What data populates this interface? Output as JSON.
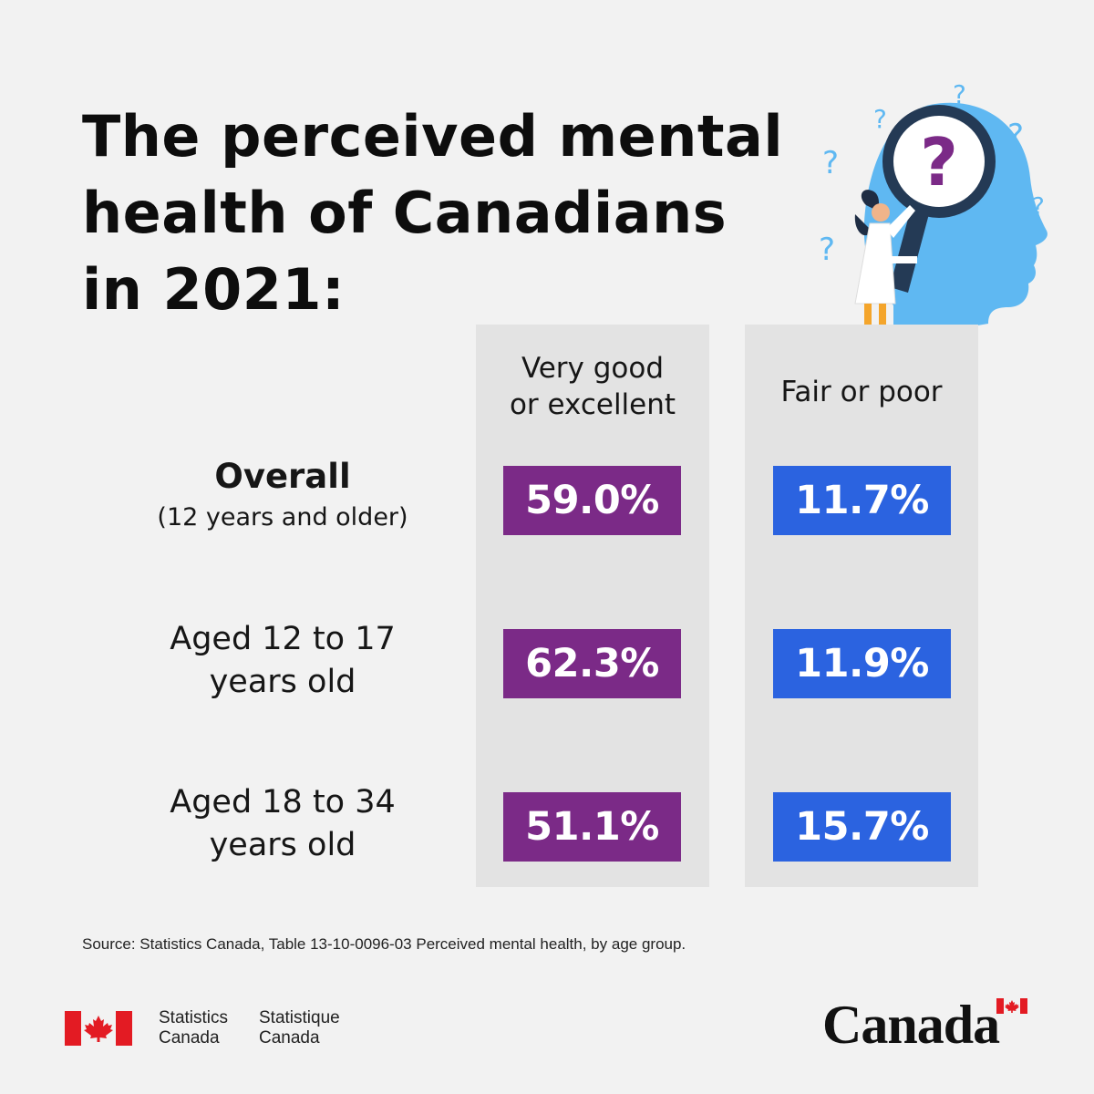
{
  "title_lines": [
    "The perceived mental",
    "health of Canadians",
    "in 2021:"
  ],
  "columns": [
    {
      "lines": [
        "Very good",
        "or excellent"
      ],
      "color": "#7b2a87"
    },
    {
      "lines": [
        "Fair or poor"
      ],
      "color": "#2b63e0"
    }
  ],
  "rows": [
    {
      "label_lines": [
        "Overall"
      ],
      "sub_label": "(12 years and older)",
      "values": [
        "59.0%",
        "11.7%"
      ]
    },
    {
      "label_lines": [
        "Aged 12 to 17",
        "years old"
      ],
      "values": [
        "62.3%",
        "11.9%"
      ]
    },
    {
      "label_lines": [
        "Aged 18 to 34",
        "years old"
      ],
      "values": [
        "51.1%",
        "15.7%"
      ]
    }
  ],
  "source": "Source: Statistics Canada, Table 13-10-0096-03 Perceived mental health, by age group.",
  "footer": {
    "agency_en": [
      "Statistics",
      "Canada"
    ],
    "agency_fr": [
      "Statistique",
      "Canada"
    ],
    "wordmark": "Canada",
    "flag_color": "#e31b23"
  },
  "illustration": "woman-with-magnifying-glass-and-head-silhouette",
  "chart_data": {
    "type": "table",
    "columns": [
      "Very good or excellent",
      "Fair or poor"
    ],
    "rows": [
      "Overall (12 years and older)",
      "Aged 12 to 17 years old",
      "Aged 18 to 34 years old"
    ],
    "values": [
      [
        59.0,
        11.7
      ],
      [
        62.3,
        11.9
      ],
      [
        51.1,
        15.7
      ]
    ],
    "unit": "%"
  }
}
